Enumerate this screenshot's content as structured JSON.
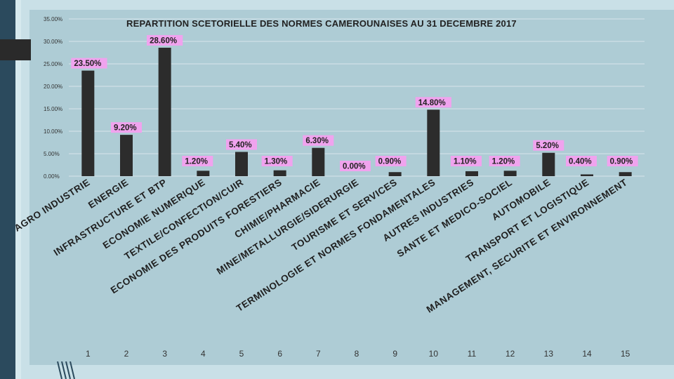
{
  "colors": {
    "bar": "#2c2c2c",
    "label_bg": "#f0a3ee",
    "panel": "#aeccd5"
  },
  "chart_data": {
    "type": "bar",
    "title": "REPARTITION SCETORIELLE DES NORMES CAMEROUNAISES AU 31 DECEMBRE 2017",
    "ylim": [
      0,
      35
    ],
    "y_ticks": [
      "35.00%",
      "30.00%",
      "25.00%",
      "20.00%",
      "15.00%",
      "10.00%",
      "5.00%",
      "0.00%"
    ],
    "indices": [
      "1",
      "2",
      "3",
      "4",
      "5",
      "6",
      "7",
      "8",
      "9",
      "10",
      "11",
      "12",
      "13",
      "14",
      "15"
    ],
    "categories": [
      "AGRO INDUSTRIE",
      "ENERGIE",
      "INFRASTRUCTURE ET BTP",
      "ECONOMIE NUMERIQUE",
      "TEXTILE/CONFECTION/CUIR",
      "ECONOMIE DES PRODUITS FORESTIERS",
      "CHIMIE/PHARMACIE",
      "MINE/METALLURGIE/SIDERURGIE",
      "TOURISME ET SERVICES",
      "TERMINOLOGIE ET NORMES FONDAMENTALES",
      "AUTRES INDUSTRIES",
      "SANTE ET MEDICO-SOCIEL",
      "AUTOMOBILE",
      "TRANSPORT ET LOGISTIQUE",
      "MANAGEMENT, SECURITE ET ENVIRONNEMENT"
    ],
    "values": [
      23.5,
      9.2,
      28.6,
      1.2,
      5.4,
      1.3,
      6.3,
      0.0,
      0.9,
      14.8,
      1.1,
      1.2,
      5.2,
      0.4,
      0.9
    ],
    "value_labels": [
      "23.50%",
      "9.20%",
      "28.60%",
      "1.20%",
      "5.40%",
      "1.30%",
      "6.30%",
      "0.00%",
      "0.90%",
      "14.80%",
      "1.10%",
      "1.20%",
      "5.20%",
      "0.40%",
      "0.90%"
    ]
  }
}
